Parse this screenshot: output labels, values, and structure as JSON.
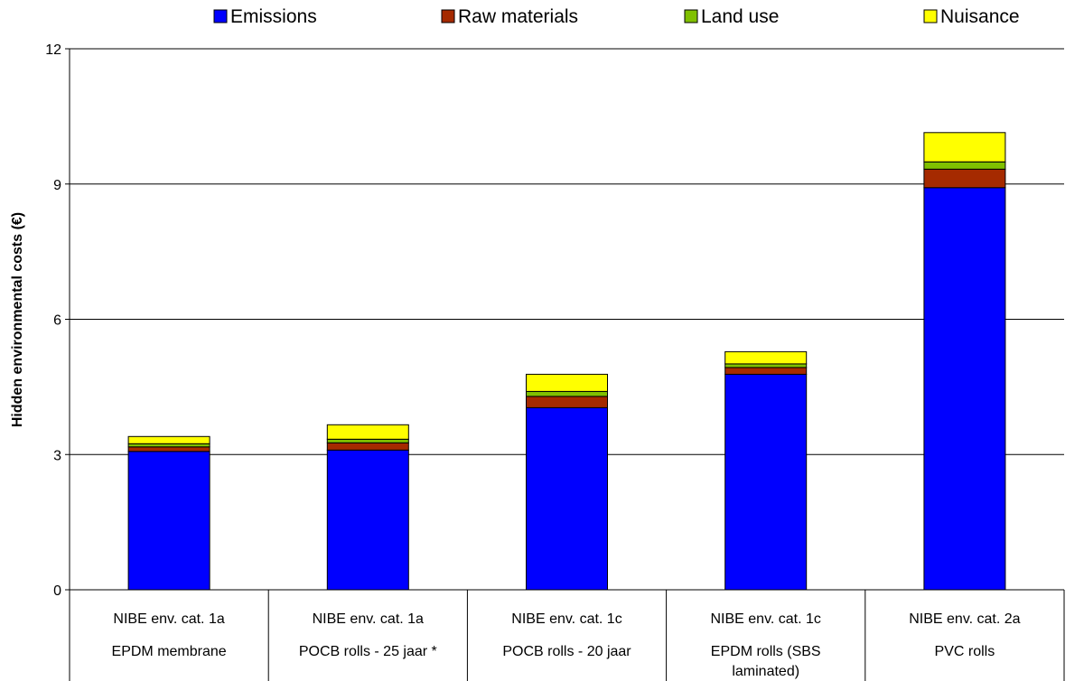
{
  "chart_data": {
    "type": "bar",
    "stacked": true,
    "categories": [
      [
        "NIBE env. cat. 1a",
        "EPDM membrane"
      ],
      [
        "NIBE env. cat. 1a",
        "POCB rolls - 25 jaar *"
      ],
      [
        "NIBE env. cat. 1c",
        "POCB rolls - 20 jaar"
      ],
      [
        "NIBE env. cat. 1c",
        "EPDM rolls (SBS",
        "laminated)"
      ],
      [
        "NIBE env. cat. 2a",
        "PVC rolls"
      ]
    ],
    "series": [
      {
        "name": "Emissions",
        "color": "#0000ff",
        "values": [
          3.07,
          3.1,
          4.04,
          4.78,
          8.92
        ]
      },
      {
        "name": "Raw materials",
        "color": "#a52a00",
        "values": [
          0.1,
          0.16,
          0.25,
          0.15,
          0.41
        ]
      },
      {
        "name": "Land use",
        "color": "#80c000",
        "values": [
          0.07,
          0.08,
          0.11,
          0.08,
          0.16
        ]
      },
      {
        "name": "Nuisance",
        "color": "#ffff00",
        "values": [
          0.16,
          0.32,
          0.38,
          0.27,
          0.65
        ]
      }
    ],
    "title": "",
    "xlabel": "",
    "ylabel": "Hidden environmental costs (€)",
    "ylim": [
      0,
      12
    ],
    "yticks": [
      0,
      3,
      6,
      9,
      12
    ],
    "grid": true,
    "legend": "top"
  }
}
